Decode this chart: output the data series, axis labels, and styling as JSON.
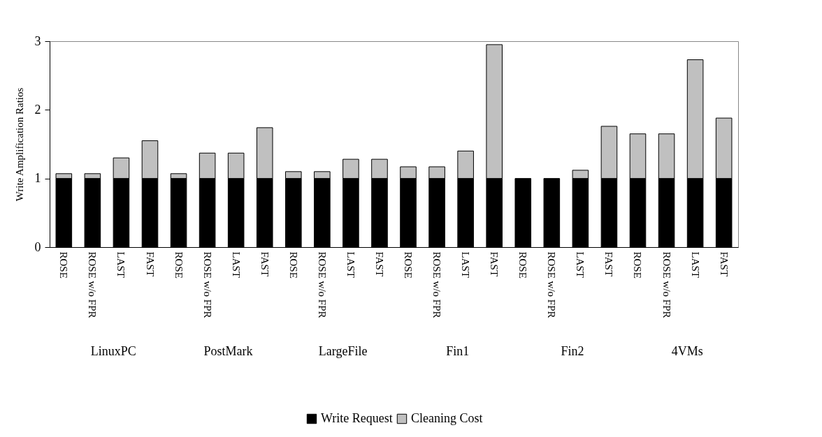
{
  "chart_data": {
    "type": "bar",
    "stacked": true,
    "ylabel": "Write Amplification Ratios",
    "categories": [
      "ROSE",
      "ROSE w/o FPR",
      "LAST",
      "FAST",
      "ROSE",
      "ROSE w/o FPR",
      "LAST",
      "FAST",
      "ROSE",
      "ROSE w/o FPR",
      "LAST",
      "FAST",
      "ROSE",
      "ROSE w/o FPR",
      "LAST",
      "FAST",
      "ROSE",
      "ROSE w/o FPR",
      "LAST",
      "FAST",
      "ROSE",
      "ROSE w/o FPR",
      "LAST",
      "FAST"
    ],
    "series": [
      {
        "name": "Write Request",
        "color": "#000000",
        "values": [
          1,
          1,
          1,
          1,
          1,
          1,
          1,
          1,
          1,
          1,
          1,
          1,
          1,
          1,
          1,
          1,
          1,
          1,
          1,
          1,
          1,
          1,
          1,
          1
        ]
      },
      {
        "name": "Cleaning Cost",
        "color": "#c0c0c0",
        "values": [
          0.07,
          0.07,
          0.3,
          0.55,
          0.07,
          0.37,
          0.37,
          0.74,
          0.1,
          0.1,
          0.28,
          0.28,
          0.17,
          0.17,
          0.4,
          1.95,
          null,
          null,
          0.12,
          0.76,
          0.65,
          0.65,
          1.73,
          0.88
        ]
      }
    ],
    "annotations": [
      "LinuxPC",
      "PostMark",
      "LargeFile",
      "Fin1",
      "Fin2",
      "4VMs"
    ],
    "ylim": [
      0,
      3
    ],
    "yticks": [
      0,
      1,
      2,
      3
    ],
    "grid": false,
    "legend": "bottom"
  }
}
